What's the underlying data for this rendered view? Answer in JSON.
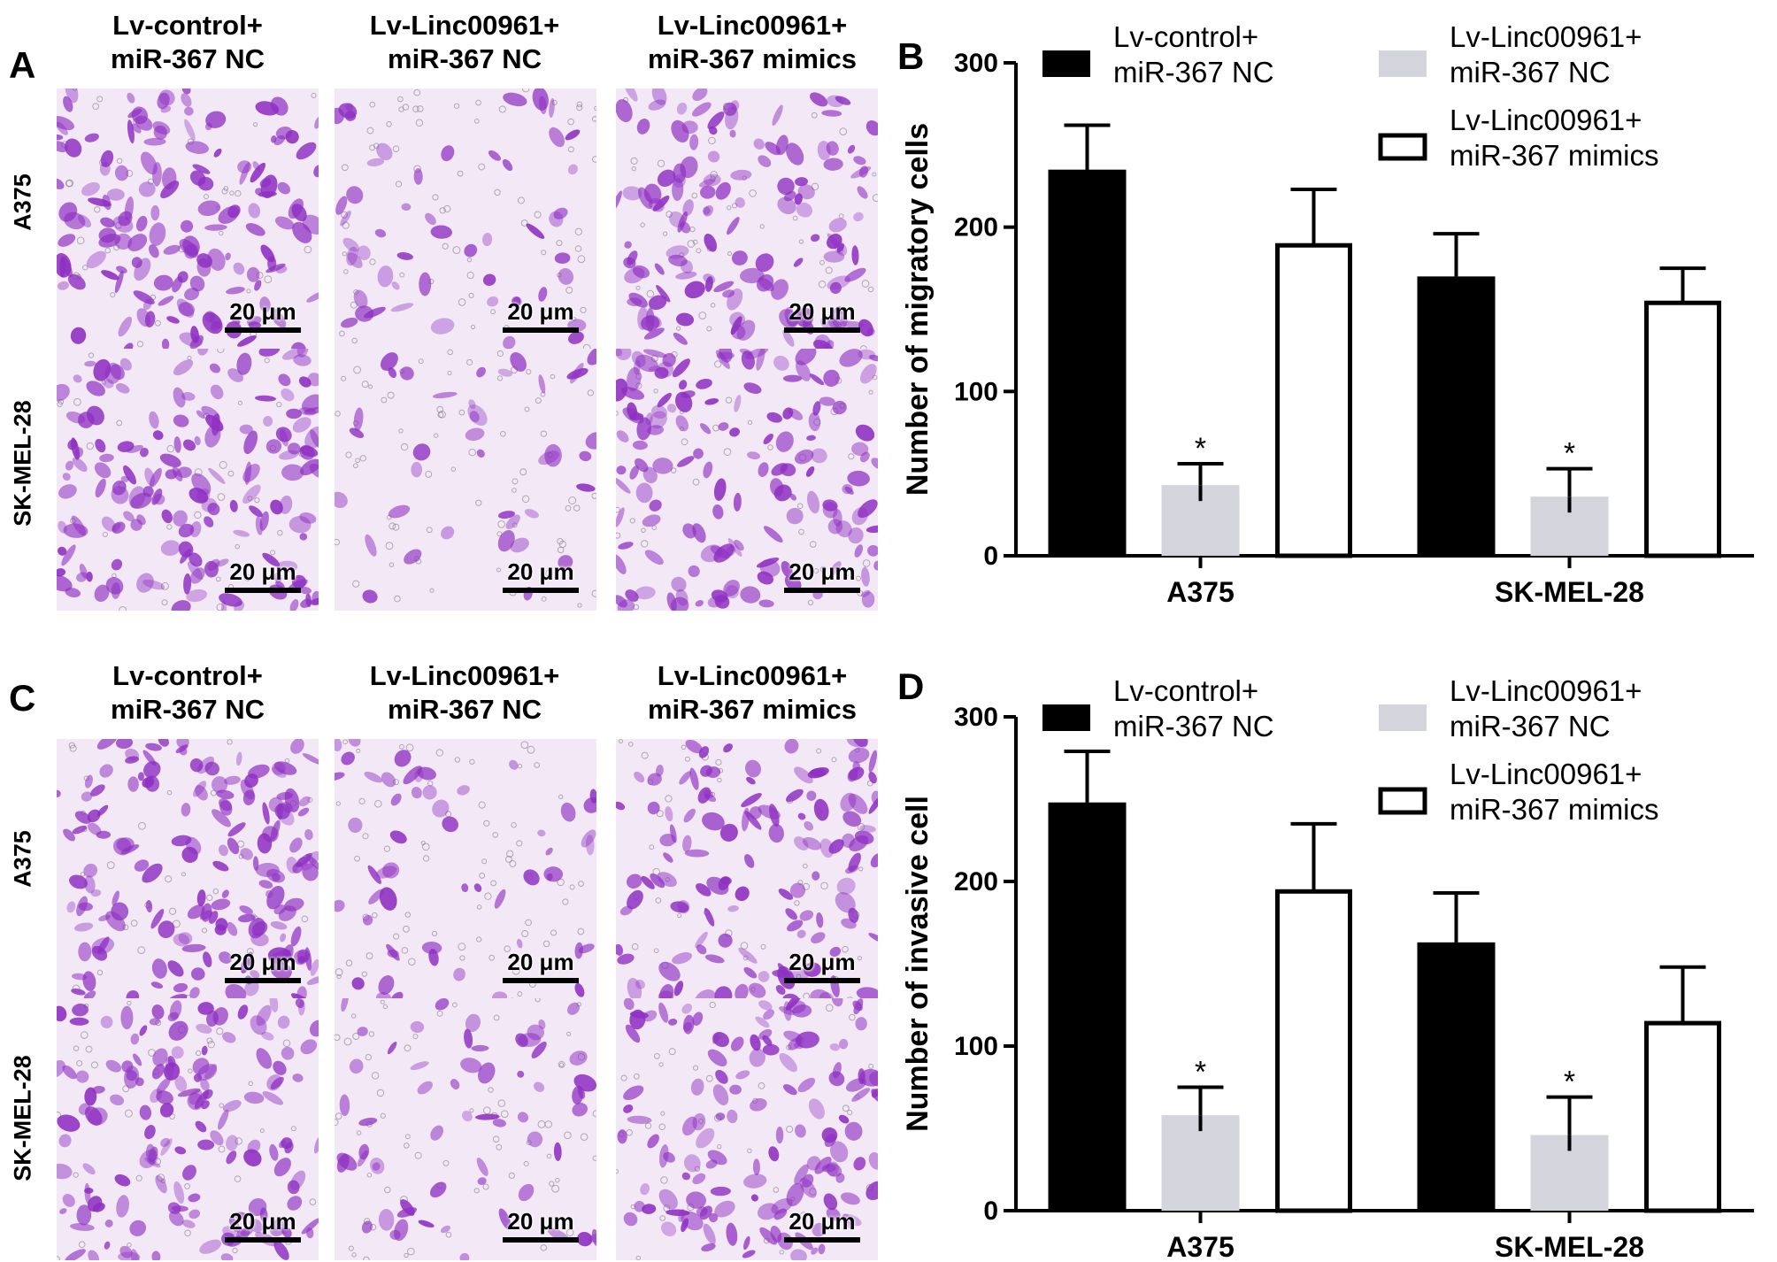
{
  "panels": {
    "A": "A",
    "B": "B",
    "C": "C",
    "D": "D"
  },
  "micrographs": {
    "column_headers": [
      "Lv-control+\nmiR-367 NC",
      "Lv-Linc00961+\nmiR-367 NC",
      "Lv-Linc00961+\nmiR-367 mimics"
    ],
    "row_labels": [
      "A375",
      "SK-MEL-28"
    ],
    "scale_bar": "20 μm",
    "colors": {
      "stain": "#8e2fc2",
      "background": "#f3e8f6"
    }
  },
  "chart_data": [
    {
      "type": "bar",
      "panel": "B",
      "categories": [
        "A375",
        "SK-MEL-28"
      ],
      "series": [
        {
          "name": "Lv-control+\nmiR-367 NC",
          "values": [
            235,
            170
          ],
          "errors": [
            27,
            26
          ],
          "color": "#000000",
          "fill": "solid"
        },
        {
          "name": "Lv-Linc00961+\nmiR-367 NC",
          "values": [
            43,
            36
          ],
          "errors": [
            13,
            17
          ],
          "color": "#d4d4dc",
          "fill": "solid"
        },
        {
          "name": "Lv-Linc00961+\nmiR-367 mimics",
          "values": [
            190,
            155
          ],
          "errors": [
            33,
            20
          ],
          "color": "#000000",
          "fill": "open"
        }
      ],
      "significance": [
        [
          false,
          true,
          false
        ],
        [
          false,
          true,
          false
        ]
      ],
      "significance_label": "*",
      "ylabel": "Number of migratory cells",
      "xlabel": "",
      "ylim": [
        0,
        300
      ],
      "yticks": [
        0,
        100,
        200,
        300
      ],
      "legend": "top"
    },
    {
      "type": "bar",
      "panel": "D",
      "categories": [
        "A375",
        "SK-MEL-28"
      ],
      "series": [
        {
          "name": "Lv-control+\nmiR-367 NC",
          "values": [
            248,
            163
          ],
          "errors": [
            31,
            30
          ],
          "color": "#000000",
          "fill": "solid"
        },
        {
          "name": "Lv-Linc00961+\nmiR-367 NC",
          "values": [
            58,
            46
          ],
          "errors": [
            17,
            23
          ],
          "color": "#d4d4dc",
          "fill": "solid"
        },
        {
          "name": "Lv-Linc00961+\nmiR-367 mimics",
          "values": [
            195,
            115
          ],
          "errors": [
            40,
            33
          ],
          "color": "#000000",
          "fill": "open"
        }
      ],
      "significance": [
        [
          false,
          true,
          false
        ],
        [
          false,
          true,
          false
        ]
      ],
      "significance_label": "*",
      "ylabel": "Number of invasive cell",
      "xlabel": "",
      "ylim": [
        0,
        300
      ],
      "yticks": [
        0,
        100,
        200,
        300
      ],
      "legend": "top"
    }
  ]
}
